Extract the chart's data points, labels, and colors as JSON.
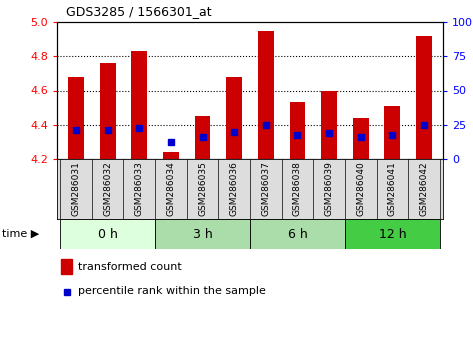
{
  "title": "GDS3285 / 1566301_at",
  "samples": [
    "GSM286031",
    "GSM286032",
    "GSM286033",
    "GSM286034",
    "GSM286035",
    "GSM286036",
    "GSM286037",
    "GSM286038",
    "GSM286039",
    "GSM286040",
    "GSM286041",
    "GSM286042"
  ],
  "bar_tops": [
    4.68,
    4.76,
    4.83,
    4.24,
    4.45,
    4.68,
    4.95,
    4.53,
    4.6,
    4.44,
    4.51,
    4.92
  ],
  "bar_bottoms": [
    4.2,
    4.2,
    4.2,
    4.2,
    4.2,
    4.2,
    4.2,
    4.2,
    4.2,
    4.2,
    4.2,
    4.2
  ],
  "percentile_values": [
    4.37,
    4.37,
    4.38,
    4.3,
    4.33,
    4.36,
    4.4,
    4.34,
    4.35,
    4.33,
    4.34,
    4.4
  ],
  "ylim": [
    4.2,
    5.0
  ],
  "yticks_left": [
    4.2,
    4.4,
    4.6,
    4.8,
    5.0
  ],
  "yticks_right": [
    0,
    25,
    50,
    75,
    100
  ],
  "bar_color": "#cc0000",
  "percentile_color": "#0000cc",
  "group_ranges": [
    [
      0,
      3,
      "0 h",
      "#ddffdd"
    ],
    [
      3,
      6,
      "3 h",
      "#aaddaa"
    ],
    [
      6,
      9,
      "6 h",
      "#aaddaa"
    ],
    [
      9,
      12,
      "12 h",
      "#44cc44"
    ]
  ],
  "bar_width": 0.5,
  "legend_labels": [
    "transformed count",
    "percentile rank within the sample"
  ],
  "sample_box_color": "#dddddd",
  "grid_dotted_vals": [
    4.4,
    4.6,
    4.8
  ]
}
